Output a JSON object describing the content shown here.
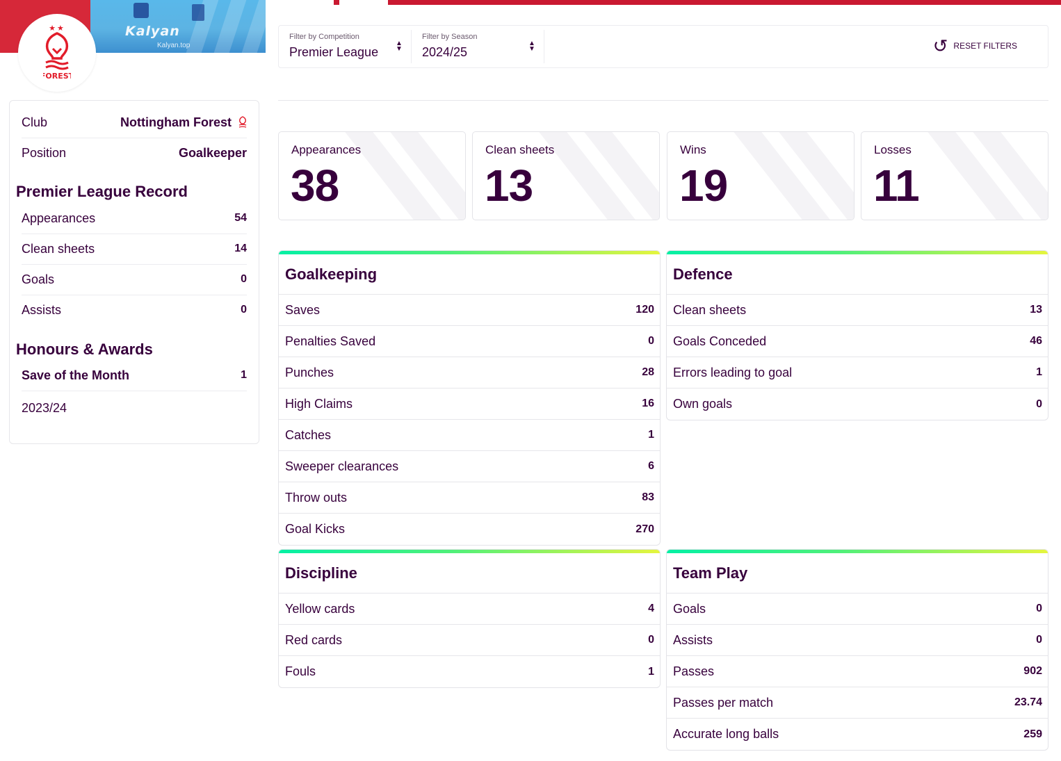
{
  "hero": {
    "watermark": "Kalyan",
    "watermark_sub": "Kalyan.top",
    "badge_text": "FOREST"
  },
  "filters": {
    "competition_label": "Filter by Competition",
    "competition_value": "Premier League",
    "season_label": "Filter by Season",
    "season_value": "2024/25",
    "reset_label": "RESET FILTERS"
  },
  "profile": {
    "club_key": "Club",
    "club_value": "Nottingham Forest",
    "position_key": "Position",
    "position_value": "Goalkeeper"
  },
  "pl_record": {
    "title": "Premier League Record",
    "rows": [
      {
        "label": "Appearances",
        "value": "54"
      },
      {
        "label": "Clean sheets",
        "value": "14"
      },
      {
        "label": "Goals",
        "value": "0"
      },
      {
        "label": "Assists",
        "value": "0"
      }
    ]
  },
  "honours": {
    "title": "Honours & Awards",
    "award": "Save of the Month",
    "count": "1",
    "season": "2023/24"
  },
  "summary": [
    {
      "label": "Appearances",
      "value": "38"
    },
    {
      "label": "Clean sheets",
      "value": "13"
    },
    {
      "label": "Wins",
      "value": "19"
    },
    {
      "label": "Losses",
      "value": "11"
    }
  ],
  "goalkeeping": {
    "title": "Goalkeeping",
    "rows": [
      {
        "label": "Saves",
        "value": "120"
      },
      {
        "label": "Penalties Saved",
        "value": "0"
      },
      {
        "label": "Punches",
        "value": "28"
      },
      {
        "label": "High Claims",
        "value": "16"
      },
      {
        "label": "Catches",
        "value": "1"
      },
      {
        "label": "Sweeper clearances",
        "value": "6"
      },
      {
        "label": "Throw outs",
        "value": "83"
      },
      {
        "label": "Goal Kicks",
        "value": "270"
      }
    ]
  },
  "defence": {
    "title": "Defence",
    "rows": [
      {
        "label": "Clean sheets",
        "value": "13"
      },
      {
        "label": "Goals Conceded",
        "value": "46"
      },
      {
        "label": "Errors leading to goal",
        "value": "1"
      },
      {
        "label": "Own goals",
        "value": "0"
      }
    ]
  },
  "discipline": {
    "title": "Discipline",
    "rows": [
      {
        "label": "Yellow cards",
        "value": "4"
      },
      {
        "label": "Red cards",
        "value": "0"
      },
      {
        "label": "Fouls",
        "value": "1"
      }
    ]
  },
  "team_play": {
    "title": "Team Play",
    "rows": [
      {
        "label": "Goals",
        "value": "0"
      },
      {
        "label": "Assists",
        "value": "0"
      },
      {
        "label": "Passes",
        "value": "902"
      },
      {
        "label": "Passes per match",
        "value": "23.74"
      },
      {
        "label": "Accurate long balls",
        "value": "259"
      }
    ]
  },
  "colors": {
    "brand": "#37003c",
    "club_red": "#d62839",
    "gradient_start": "#05f0a4",
    "gradient_end": "#e5f53e"
  },
  "icons": {
    "reset": "reset-icon",
    "dropdown": "chevron-updown-icon",
    "club": "nottingham-forest-crest-icon"
  }
}
